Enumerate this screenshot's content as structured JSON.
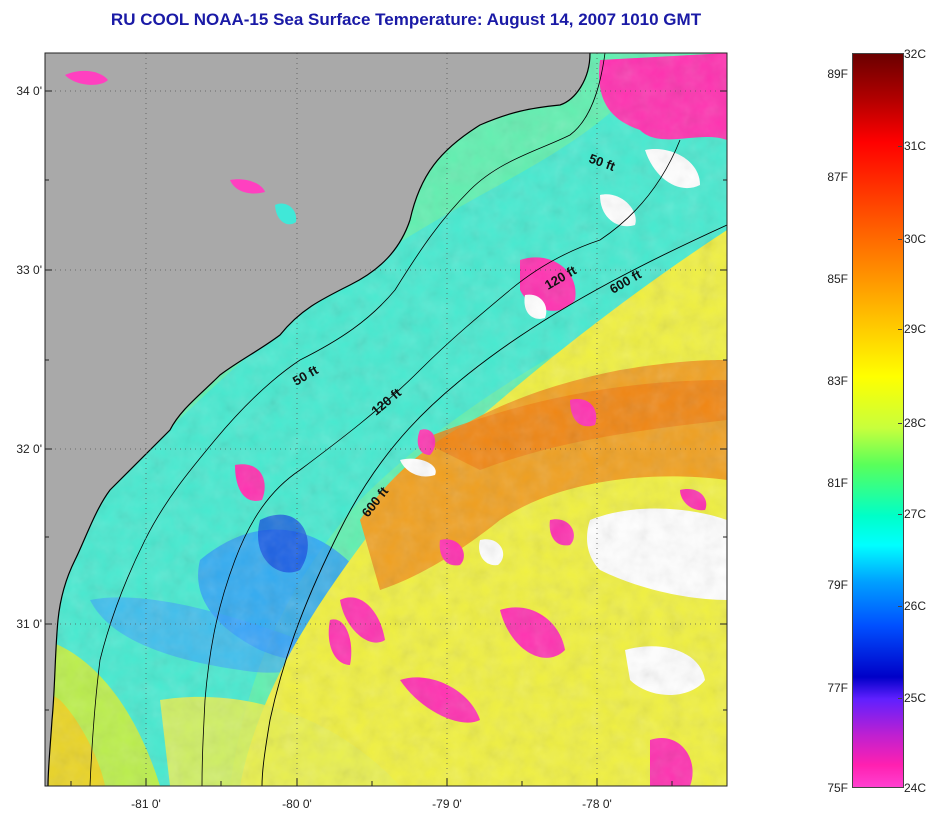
{
  "title": "RU COOL  NOAA-15  Sea Surface Temperature:  August 14, 2007 1010 GMT",
  "map": {
    "land_color": "#a9a9a9",
    "latitude_labels": [
      {
        "text": "34 0'",
        "lat": 34.0
      },
      {
        "text": "33 0'",
        "lat": 33.0
      },
      {
        "text": "32 0'",
        "lat": 32.0
      },
      {
        "text": "31 0'",
        "lat": 31.0
      }
    ],
    "longitude_labels": [
      {
        "text": "-81 0'",
        "lon": -81.0
      },
      {
        "text": "-80 0'",
        "lon": -80.0
      },
      {
        "text": "-79 0'",
        "lon": -79.0
      },
      {
        "text": "-78 0'",
        "lon": -78.0
      }
    ],
    "isobath_labels": [
      {
        "text": "50 ft",
        "id": "isobath-label-50ft-north"
      },
      {
        "text": "120 ft",
        "id": "isobath-label-120ft-north"
      },
      {
        "text": "600 ft",
        "id": "isobath-label-600ft-north"
      },
      {
        "text": "50 ft",
        "id": "isobath-label-50ft-south"
      },
      {
        "text": "120 ft",
        "id": "isobath-label-120ft-south"
      },
      {
        "text": "600 ft",
        "id": "isobath-label-600ft-south"
      }
    ]
  },
  "colorbar": {
    "fahrenheit_labels": [
      "89F",
      "87F",
      "85F",
      "83F",
      "81F",
      "79F",
      "77F",
      "75F"
    ],
    "celsius_labels": [
      "32C",
      "31C",
      "30C",
      "29C",
      "28C",
      "27C",
      "26C",
      "25C",
      "24C"
    ]
  }
}
